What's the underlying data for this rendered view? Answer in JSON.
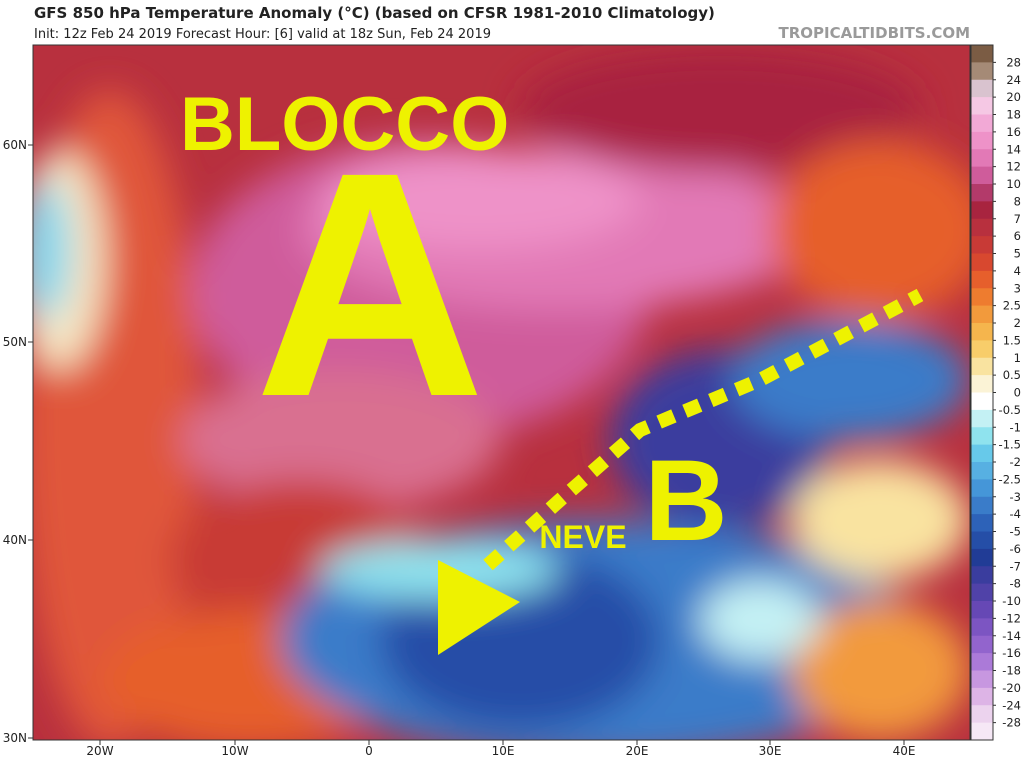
{
  "header": {
    "title": "GFS 850 hPa Temperature Anomaly (°C) (based on CFSR 1981-2010 Climatology)",
    "subtitle": "Init: 12z Feb 24 2019   Forecast Hour: [6]   valid at 18z Sun, Feb 24 2019",
    "site": "TROPICALTIDBITS.COM"
  },
  "map": {
    "latitudes": [
      "60N",
      "50N",
      "40N",
      "30N"
    ],
    "longitudes": [
      "20W",
      "10W",
      "0",
      "10E",
      "20E",
      "30E",
      "40E"
    ]
  },
  "annotations": {
    "block": "BLOCCO",
    "high": "A",
    "low": "B",
    "snow": "NEVE"
  },
  "colorbar": {
    "levels": [
      28,
      24,
      20,
      18,
      16,
      14,
      12,
      10,
      8,
      7,
      6,
      5,
      4,
      3,
      2.5,
      2,
      1.5,
      1,
      0.5,
      0,
      -0.5,
      -1,
      -1.5,
      -2,
      -2.5,
      -3,
      -4,
      -5,
      -6,
      -7,
      -8,
      -10,
      -12,
      -14,
      -16,
      -18,
      -20,
      -24,
      -28
    ],
    "colors": [
      "#7b5c44",
      "#a58a76",
      "#d9c3cf",
      "#f5c8e4",
      "#f2a9d6",
      "#ee92c8",
      "#e279b6",
      "#cf5c9b",
      "#b33a6a",
      "#a8243f",
      "#b8303e",
      "#c83a36",
      "#d8482f",
      "#e65f2c",
      "#ee7c2f",
      "#f29a3c",
      "#f5b54d",
      "#f8cd6a",
      "#f9e3a0",
      "#fbf3d6",
      "#ffffff",
      "#c4f1f4",
      "#8fe3ee",
      "#67c9ea",
      "#57b0e2",
      "#4596d8",
      "#3a7cc9",
      "#2d62b8",
      "#254ea7",
      "#213c96",
      "#3a3d9e",
      "#5042a8",
      "#6648b5",
      "#7c55c2",
      "#9264cd",
      "#ab7ad8",
      "#c797e0",
      "#ddb4e6",
      "#ecd3ee",
      "#f6e8f6"
    ]
  }
}
